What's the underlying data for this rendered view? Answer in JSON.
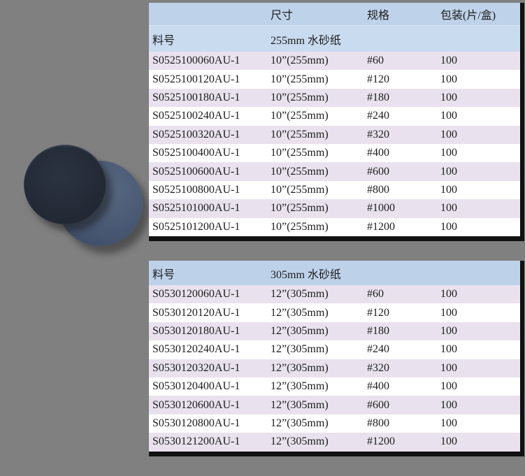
{
  "page": {
    "background_color": "#808080",
    "border_color": "#111111"
  },
  "product_image": {
    "description": "two overlapping round sanding discs",
    "front_disc_color": "#242b37",
    "back_disc_color": "#4b5b76"
  },
  "colors": {
    "header_blue": "#bed3e9",
    "subheader_blue": "#c9dbef",
    "row_lavender": "#e9e2ee",
    "row_white": "#ffffff",
    "text": "#1c1c1c"
  },
  "tables": [
    {
      "header": {
        "col1": "",
        "col2": "尺寸",
        "col3": "规格",
        "col4": "包装(片/盒)"
      },
      "subheader": {
        "col1": "料号",
        "col2": "255mm 水砂纸",
        "col3": "",
        "col4": ""
      },
      "rows": [
        {
          "part": "S0525100060AU-1",
          "size": "10”(255mm)",
          "grit": "#60",
          "pack": "100"
        },
        {
          "part": "S0525100120AU-1",
          "size": "10”(255mm)",
          "grit": "#120",
          "pack": "100"
        },
        {
          "part": "S0525100180AU-1",
          "size": "10”(255mm)",
          "grit": "#180",
          "pack": "100"
        },
        {
          "part": "S0525100240AU-1",
          "size": "10”(255mm)",
          "grit": "#240",
          "pack": "100"
        },
        {
          "part": "S0525100320AU-1",
          "size": "10”(255mm)",
          "grit": "#320",
          "pack": "100"
        },
        {
          "part": "S0525100400AU-1",
          "size": "10”(255mm)",
          "grit": "#400",
          "pack": "100"
        },
        {
          "part": "S0525100600AU-1",
          "size": "10”(255mm)",
          "grit": "#600",
          "pack": "100"
        },
        {
          "part": "S0525100800AU-1",
          "size": "10”(255mm)",
          "grit": "#800",
          "pack": "100"
        },
        {
          "part": "S0525101000AU-1",
          "size": "10”(255mm)",
          "grit": "#1000",
          "pack": "100"
        },
        {
          "part": "S0525101200AU-1",
          "size": "10”(255mm)",
          "grit": "#1200",
          "pack": "100"
        }
      ]
    },
    {
      "subheader": {
        "col1": "料号",
        "col2": "305mm 水砂纸",
        "col3": "",
        "col4": ""
      },
      "rows": [
        {
          "part": "S0530120060AU-1",
          "size": "12”(305mm)",
          "grit": "#60",
          "pack": "100"
        },
        {
          "part": "S0530120120AU-1",
          "size": "12”(305mm)",
          "grit": "#120",
          "pack": "100"
        },
        {
          "part": "S0530120180AU-1",
          "size": "12”(305mm)",
          "grit": "#180",
          "pack": "100"
        },
        {
          "part": "S0530120240AU-1",
          "size": "12”(305mm)",
          "grit": "#240",
          "pack": "100"
        },
        {
          "part": "S0530120320AU-1",
          "size": "12”(305mm)",
          "grit": "#320",
          "pack": "100"
        },
        {
          "part": "S0530120400AU-1",
          "size": "12”(305mm)",
          "grit": "#400",
          "pack": "100"
        },
        {
          "part": "S0530120600AU-1",
          "size": "12”(305mm)",
          "grit": "#600",
          "pack": "100"
        },
        {
          "part": "S0530120800AU-1",
          "size": "12”(305mm)",
          "grit": "#800",
          "pack": "100"
        },
        {
          "part": "S0530121200AU-1",
          "size": "12”(305mm)",
          "grit": "#1200",
          "pack": "100"
        }
      ]
    }
  ]
}
